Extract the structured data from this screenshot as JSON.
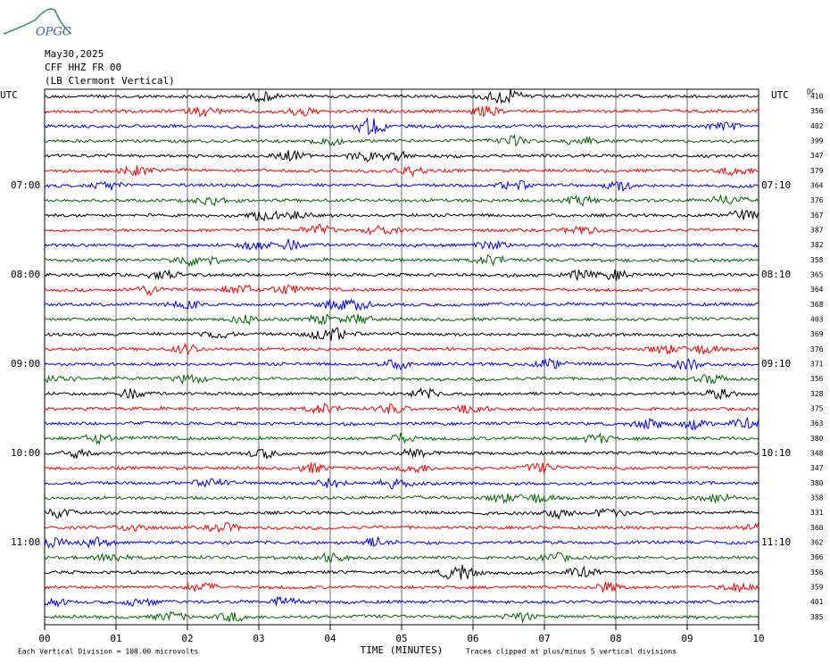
{
  "logo": "OPGC",
  "header": {
    "date": "May30,2025",
    "station": "CFF HHZ FR 00",
    "location": "(LB  Clermont Vertical)"
  },
  "left_axis": {
    "title": "UTC",
    "labels": [
      "07:00",
      "08:00",
      "09:00",
      "10:00",
      "11:00"
    ]
  },
  "right_axis": {
    "title": "UTC",
    "labels": [
      "07:10",
      "08:10",
      "09:10",
      "10:10",
      "11:10"
    ],
    "dc_title": "DC",
    "dc_values": [
      "410",
      "356",
      "402",
      "399",
      "347",
      "379",
      "364",
      "376",
      "367",
      "387",
      "382",
      "358",
      "365",
      "364",
      "368",
      "403",
      "369",
      "376",
      "371",
      "356",
      "328",
      "375",
      "363",
      "380",
      "348",
      "347",
      "380",
      "358",
      "331",
      "360",
      "362",
      "366",
      "356",
      "359",
      "401",
      "385"
    ]
  },
  "x_axis": {
    "title": "TIME (MINUTES)",
    "ticks": [
      "00",
      "01",
      "02",
      "03",
      "04",
      "05",
      "06",
      "07",
      "08",
      "09",
      "10"
    ]
  },
  "footer": {
    "scale": "Each Vertical Division =  100.00 microvolts",
    "clip": "Traces clipped at plus/minus 5 vertical divisions"
  },
  "trace_colors": [
    "#000000",
    "#ff0000",
    "#0000ff",
    "#006400"
  ]
}
